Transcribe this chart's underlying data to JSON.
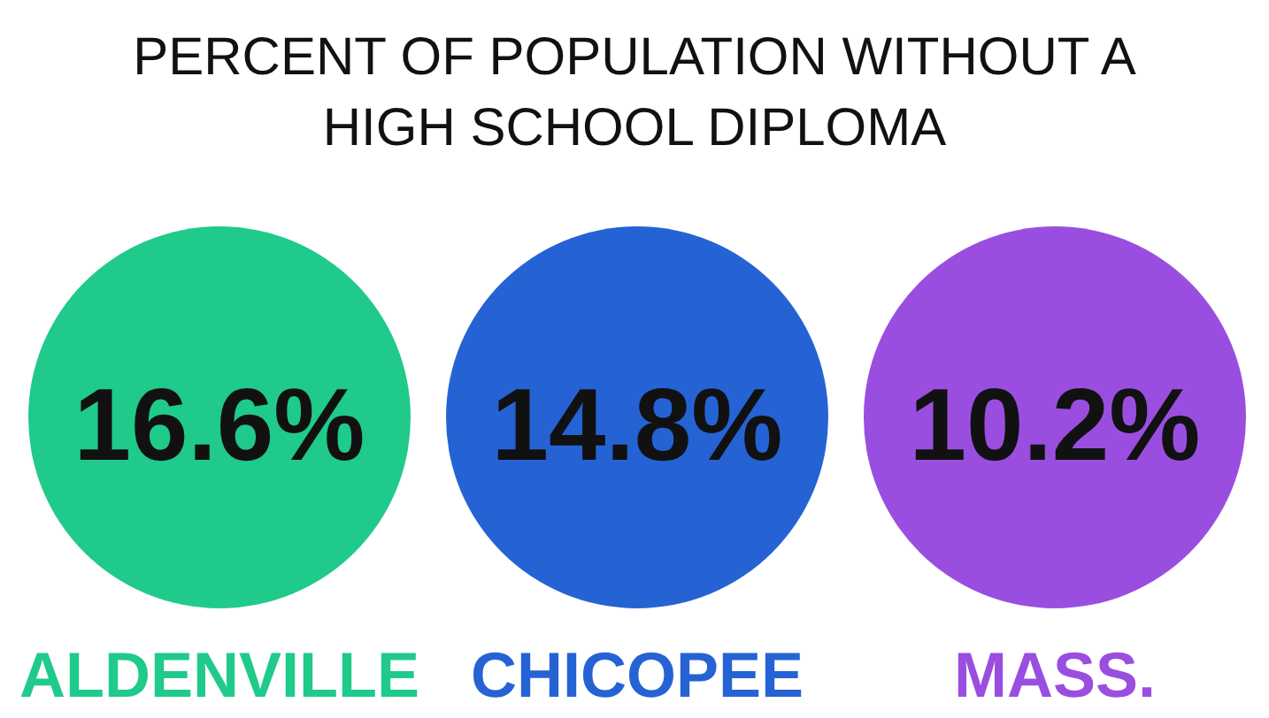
{
  "chart_data": {
    "type": "other",
    "title": "PERCENT OF POPULATION WITHOUT A HIGH SCHOOL DIPLOMA",
    "categories": [
      "ALDENVILLE",
      "CHICOPEE",
      "MASS."
    ],
    "values": [
      16.6,
      14.8,
      10.2
    ],
    "value_labels": [
      "16.6%",
      "14.8%",
      "10.2%"
    ],
    "colors": [
      "#1fca8b",
      "#2563d4",
      "#9a4ee0"
    ]
  }
}
